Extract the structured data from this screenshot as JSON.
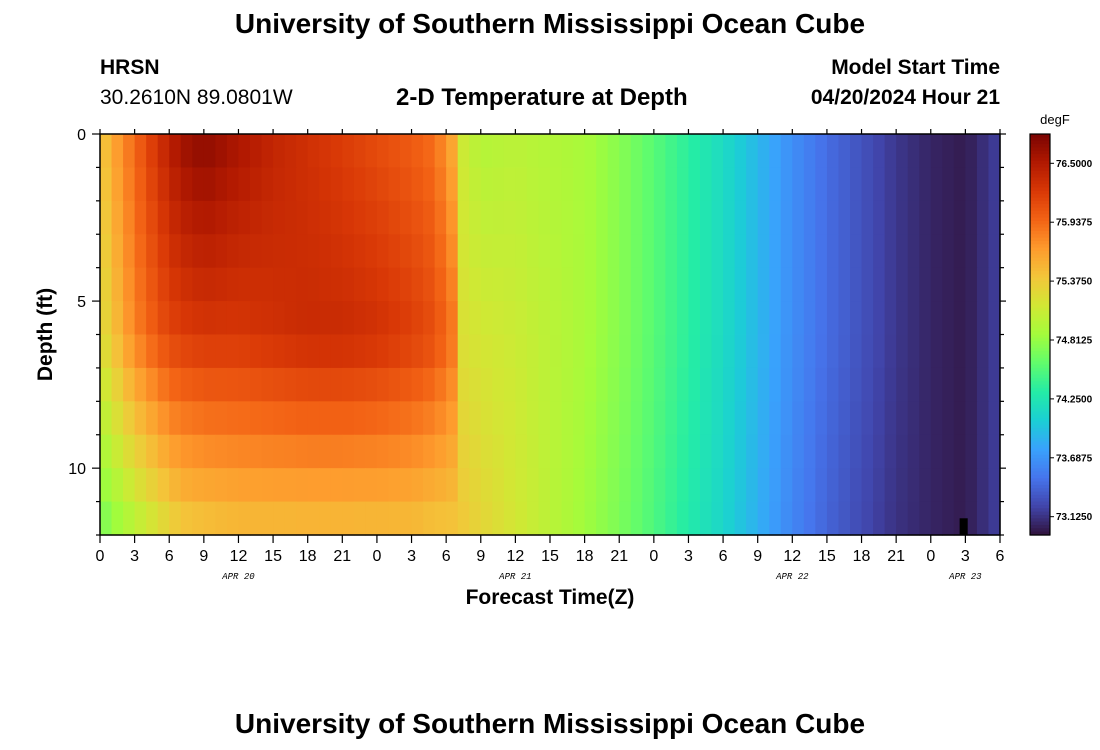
{
  "header": {
    "title": "University of Southern Mississippi Ocean Cube",
    "station": "HRSN",
    "coords": "30.2610N  89.0801W",
    "subtitle": "2-D Temperature at Depth",
    "model_start_label": "Model Start Time",
    "model_start_value": "04/20/2024 Hour 21"
  },
  "footer": {
    "title": "University of Southern Mississippi Ocean Cube"
  },
  "chart_data": {
    "type": "heatmap",
    "title": "2-D Temperature at Depth",
    "xlabel": "Forecast Time(Z)",
    "ylabel": "Depth (ft)",
    "x_tick_labels": [
      "0",
      "3",
      "6",
      "9",
      "12",
      "15",
      "18",
      "21",
      "0",
      "3",
      "6",
      "9",
      "12",
      "15",
      "18",
      "21",
      "0",
      "3",
      "6",
      "9",
      "12",
      "15",
      "18",
      "21",
      "0",
      "3",
      "6"
    ],
    "x_tick_hours_from_start": [
      -3,
      0,
      3,
      6,
      9,
      12,
      15,
      18,
      21,
      24,
      27,
      30,
      33,
      36,
      39,
      42,
      45,
      48,
      51,
      54,
      57,
      60,
      63,
      66,
      69,
      72,
      75
    ],
    "date_labels": [
      {
        "text": "APR 20",
        "hour": 9
      },
      {
        "text": "APR 21",
        "hour": 33
      },
      {
        "text": "APR 22",
        "hour": 57
      },
      {
        "text": "APR 23",
        "hour": 72
      }
    ],
    "y_ticks": [
      0,
      5,
      10
    ],
    "ylim_ft": [
      0,
      12
    ],
    "xlim_hours_from_start": [
      -3,
      75
    ],
    "colorbar": {
      "unit": "degF",
      "tick_labels": [
        "76.5000",
        "75.9375",
        "75.3750",
        "74.8125",
        "74.2500",
        "73.6875",
        "73.1250"
      ],
      "tick_values": [
        76.5,
        75.9375,
        75.375,
        74.8125,
        74.25,
        73.6875,
        73.125
      ],
      "range": [
        72.95,
        76.78
      ],
      "colors": [
        "#30123b",
        "#4145ab",
        "#4675ed",
        "#39a2fc",
        "#1bcfd4",
        "#24eca6",
        "#61fc6c",
        "#a4fc3b",
        "#d1e834",
        "#f3c63a",
        "#fe9b2d",
        "#f36315",
        "#d93806",
        "#b11901",
        "#7a0402"
      ]
    },
    "temperature_profile_degF": {
      "hours_from_start": [
        -3,
        -2,
        0,
        2,
        3,
        4,
        6,
        9,
        12,
        15,
        18,
        21,
        24,
        26,
        27,
        28,
        28.5,
        30,
        33,
        36,
        39,
        42,
        45,
        48,
        51,
        54,
        57,
        60,
        63,
        66,
        69,
        72,
        75
      ],
      "surface_ft0": [
        75.35,
        75.6,
        75.95,
        76.3,
        76.45,
        76.6,
        76.7,
        76.55,
        76.4,
        76.3,
        76.2,
        76.1,
        76.0,
        75.9,
        75.7,
        75.5,
        75.1,
        74.95,
        75.0,
        74.95,
        74.9,
        74.75,
        74.55,
        74.35,
        74.15,
        73.9,
        73.65,
        73.45,
        73.3,
        73.15,
        73.05,
        73.0,
        73.2
      ],
      "mid_ft6": [
        75.2,
        75.4,
        75.8,
        76.05,
        76.15,
        76.2,
        76.25,
        76.25,
        76.3,
        76.35,
        76.35,
        76.3,
        76.2,
        76.1,
        75.95,
        75.8,
        75.2,
        75.15,
        75.1,
        75.0,
        74.9,
        74.75,
        74.55,
        74.35,
        74.15,
        73.9,
        73.65,
        73.45,
        73.3,
        73.15,
        73.05,
        73.0,
        73.2
      ],
      "bottom_ft12": [
        74.65,
        74.75,
        74.95,
        75.15,
        75.25,
        75.35,
        75.4,
        75.45,
        75.45,
        75.45,
        75.45,
        75.45,
        75.45,
        75.4,
        75.4,
        75.4,
        75.4,
        75.3,
        75.15,
        75.0,
        74.85,
        74.7,
        74.5,
        74.3,
        74.1,
        73.85,
        73.6,
        73.4,
        73.25,
        73.12,
        73.05,
        73.0,
        73.2
      ]
    }
  }
}
